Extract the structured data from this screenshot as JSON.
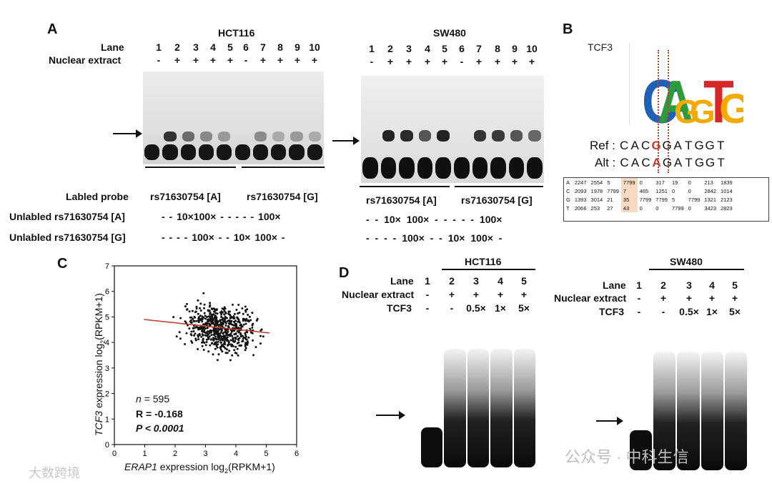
{
  "panels": {
    "a": "A",
    "b": "B",
    "c": "C",
    "d": "D"
  },
  "panelA": {
    "lane_label": "Lane",
    "nuclear_label": "Nuclear extract",
    "left": {
      "cell": "HCT116",
      "lanes": [
        "1",
        "2",
        "3",
        "4",
        "5",
        "6",
        "7",
        "8",
        "9",
        "10"
      ],
      "nuclear": [
        "-",
        "+",
        "+",
        "+",
        "+",
        "-",
        "+",
        "+",
        "+",
        "+"
      ]
    },
    "right": {
      "cell": "SW480",
      "lanes": [
        "1",
        "2",
        "3",
        "4",
        "5",
        "6",
        "7",
        "8",
        "9",
        "10"
      ],
      "nuclear": [
        "-",
        "+",
        "+",
        "+",
        "+",
        "-",
        "+",
        "+",
        "+",
        "+"
      ]
    },
    "labeled_probe_label": "Labled probe",
    "unlabeled_a_label": "Unlabled rs71630754 [A]",
    "unlabeled_g_label": "Unlabled rs71630754 [G]",
    "probe_a": "rs71630754 [A]",
    "probe_g": "rs71630754 [G]",
    "left_unlabeled_a": "-  -  10×100× -  -  -  -  -  100×",
    "left_unlabeled_g": "-  -  -  -  100× -  -  10× 100× -",
    "right_unlabeled_a": "-  -  10× 100× -  -  -  -  -  100×",
    "right_unlabeled_g": "-  -  -  -  100×  -  -  10× 100× -"
  },
  "panelB": {
    "tf": "TCF3",
    "ref_label": "Ref :",
    "alt_label": "Alt :",
    "ref_seq": [
      "C",
      "A",
      "C",
      "G",
      "G",
      "A",
      "T",
      "G",
      "G",
      "T"
    ],
    "alt_seq": [
      "C",
      "A",
      "C",
      "A",
      "G",
      "A",
      "T",
      "G",
      "G",
      "T"
    ],
    "variant_index": 3,
    "logo_letters": [
      "C",
      "A",
      "G",
      "G",
      "T",
      "G"
    ],
    "logo_colors": [
      "#1f5fb4",
      "#2e9a3c",
      "#f2a900",
      "#f2a900",
      "#d62728",
      "#f2a900"
    ],
    "matrix": [
      [
        "A",
        "2247",
        "2554",
        "5",
        "7799",
        "0",
        "317",
        "19",
        "0",
        "213",
        "1839"
      ],
      [
        "C",
        "2093",
        "1978",
        "7799",
        "7",
        "465",
        "1251",
        "0",
        "0",
        "2842",
        "1014"
      ],
      [
        "G",
        "1393",
        "3014",
        "21",
        "35",
        "7799",
        "7799",
        "5",
        "7799",
        "1321",
        "2123"
      ],
      [
        "T",
        "2066",
        "253",
        "27",
        "43",
        "0",
        "0",
        "7799",
        "0",
        "3423",
        "2823"
      ]
    ],
    "highlight_col": 4
  },
  "panelC": {
    "ylabel_gene": "TCF3",
    "ylabel_rest": " expression log",
    "ylabel_sub": "2",
    "ylabel_end": "(RPKM+1)",
    "xlabel_gene": "ERAP1",
    "xlabel_rest": " expression log",
    "xlabel_sub": "2",
    "xlabel_end": "(RPKM+1)",
    "n_label": "n",
    "n_value": " = 595",
    "r_text": "R = -0.168",
    "p_text": "P < 0.0001"
  },
  "panelD": {
    "lane_label": "Lane",
    "nuclear_label": "Nuclear extract",
    "tcf3_label": "TCF3",
    "left": {
      "cell": "HCT116",
      "lanes": [
        "1",
        "2",
        "3",
        "4",
        "5"
      ],
      "nuclear": [
        "-",
        "+",
        "+",
        "+",
        "+"
      ],
      "tcf3": [
        "-",
        "-",
        "0.5×",
        "1×",
        "5×"
      ]
    },
    "right": {
      "cell": "SW480",
      "lanes": [
        "1",
        "2",
        "3",
        "4",
        "5"
      ],
      "nuclear": [
        "-",
        "+",
        "+",
        "+",
        "+"
      ],
      "tcf3": [
        "-",
        "-",
        "0.5×",
        "1×",
        "5×"
      ]
    }
  },
  "watermarks": {
    "left": "大数跨境",
    "right": "公众号 · 中科生信"
  },
  "chart_data": {
    "type": "scatter",
    "title": "",
    "xlabel": "ERAP1 expression log2(RPKM+1)",
    "ylabel": "TCF3 expression log2(RPKM+1)",
    "xlim": [
      0,
      6
    ],
    "ylim": [
      0,
      7
    ],
    "xticks": [
      "0",
      "1",
      "2",
      "3",
      "4",
      "5",
      "6"
    ],
    "yticks": [
      "0",
      "1",
      "2",
      "3",
      "4",
      "5",
      "6",
      "7"
    ],
    "n": 595,
    "R": -0.168,
    "P": "< 0.0001",
    "trend_line": {
      "x": [
        0.97,
        5.1
      ],
      "y": [
        4.9,
        4.37
      ],
      "color": "#c0392b"
    },
    "points_note": "595 points clustered around x 2.5-4.8, y 3.8-5.5",
    "grid": false
  }
}
